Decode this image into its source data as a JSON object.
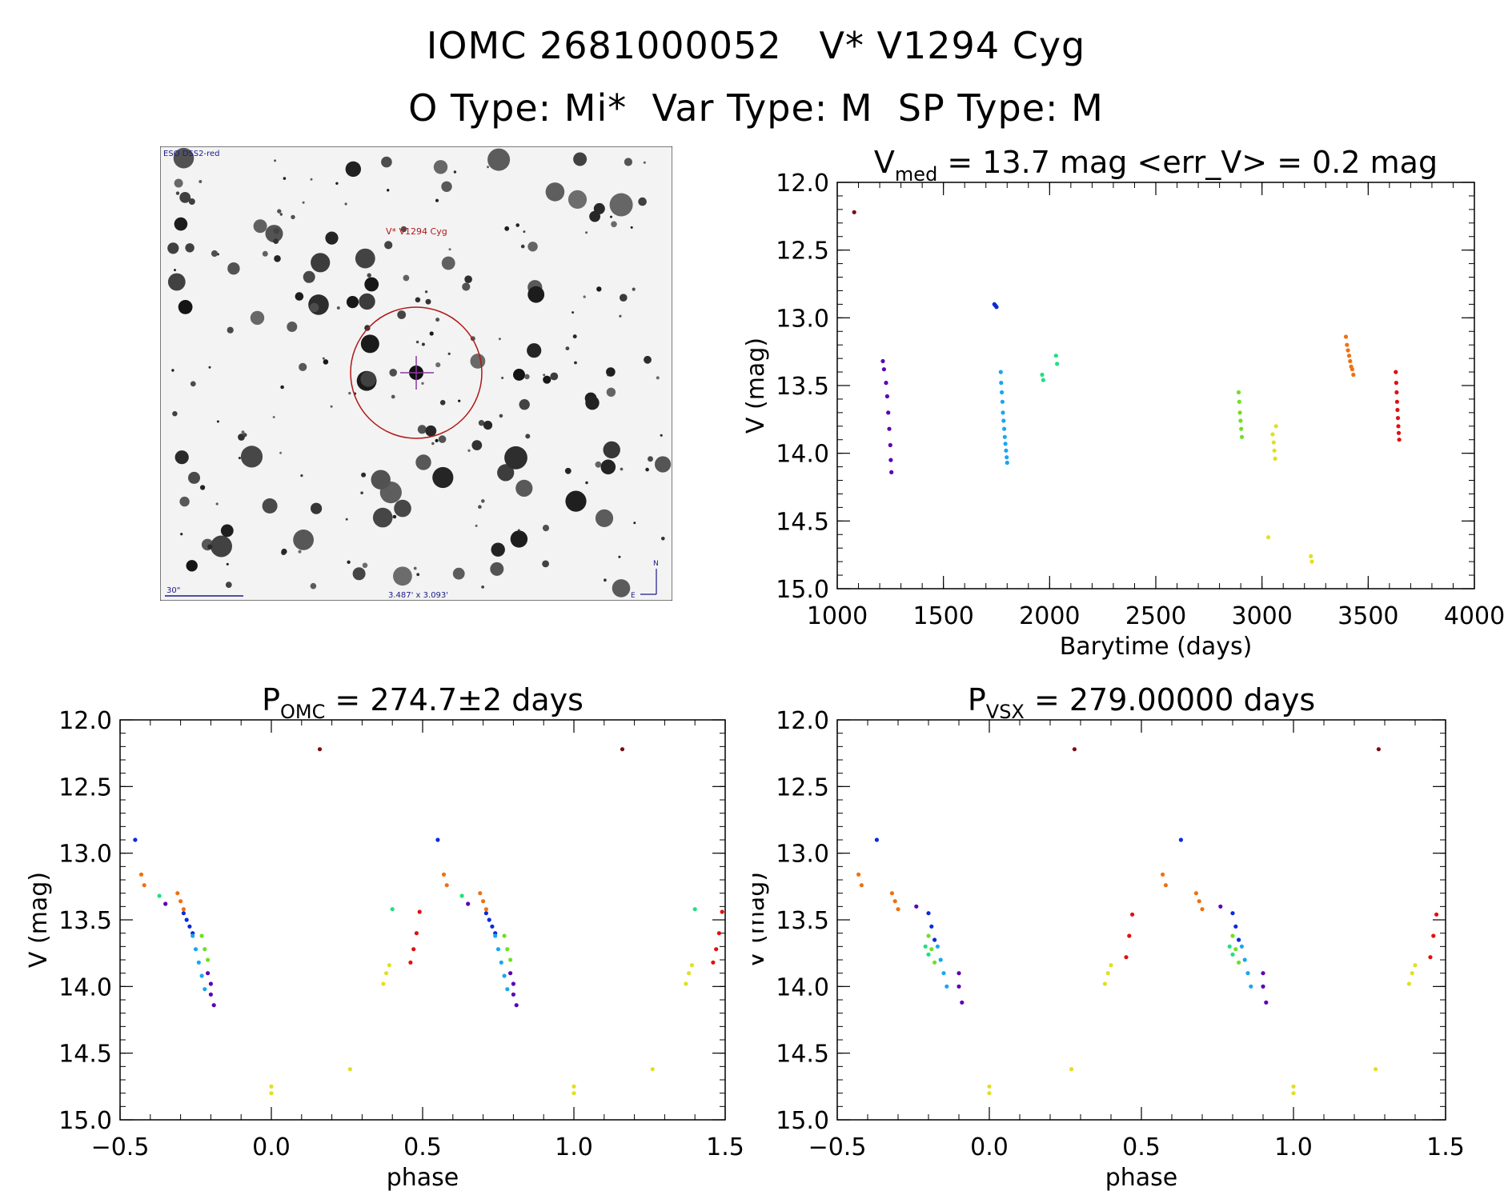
{
  "header": {
    "line1": "IOMC 2681000052   V* V1294 Cyg",
    "line2": "O Type: Mi*  Var Type: M  SP Type: M"
  },
  "finder": {
    "survey_label": "ESO DSS2-red",
    "target_label": "V* V1294 Cyg",
    "scale_label": "30\"",
    "size_label": "3.487' x 3.093'",
    "north_label": "N",
    "east_label": "E"
  },
  "colors": {
    "c1": "#7a0c14",
    "c2": "#5a00b4",
    "c3": "#0a2ad8",
    "c4": "#1aa6f0",
    "c5": "#20e080",
    "c6": "#70e020",
    "c7": "#e0e020",
    "c8": "#f07010",
    "c9": "#e01010"
  },
  "chart_data": [
    {
      "type": "scatter",
      "id": "lightcurve",
      "title_main": "V",
      "title_sub": "med",
      "title_rest": " = 13.7 mag <err_V> = 0.2 mag",
      "xlabel": "Barytime (days)",
      "ylabel": "V (mag)",
      "xlim": [
        1000,
        4000
      ],
      "ylim": [
        15.0,
        12.0
      ],
      "xticks": [
        "1000",
        "1500",
        "2000",
        "2500",
        "3000",
        "3500",
        "4000"
      ],
      "yticks": [
        "12.0",
        "12.5",
        "13.0",
        "13.5",
        "14.0",
        "14.5",
        "15.0"
      ],
      "series": [
        {
          "color": "c1",
          "x": [
            1080
          ],
          "y": [
            12.22
          ]
        },
        {
          "color": "c2",
          "x": [
            1215,
            1220,
            1230,
            1235,
            1240,
            1245,
            1250,
            1252,
            1255
          ],
          "y": [
            13.32,
            13.38,
            13.48,
            13.58,
            13.7,
            13.82,
            13.94,
            14.05,
            14.14
          ]
        },
        {
          "color": "c3",
          "x": [
            1740,
            1745,
            1750
          ],
          "y": [
            12.9,
            12.91,
            12.92
          ]
        },
        {
          "color": "c4",
          "x": [
            1770,
            1772,
            1775,
            1778,
            1780,
            1783,
            1786,
            1789,
            1792,
            1795,
            1798,
            1800
          ],
          "y": [
            13.4,
            13.48,
            13.55,
            13.62,
            13.7,
            13.76,
            13.82,
            13.88,
            13.93,
            13.98,
            14.03,
            14.07
          ]
        },
        {
          "color": "c5",
          "x": [
            1965,
            1970,
            2030,
            2035
          ],
          "y": [
            13.42,
            13.46,
            13.28,
            13.34
          ]
        },
        {
          "color": "c6",
          "x": [
            2890,
            2893,
            2896,
            2899,
            2902,
            2905
          ],
          "y": [
            13.55,
            13.62,
            13.7,
            13.76,
            13.82,
            13.88
          ]
        },
        {
          "color": "c7",
          "x": [
            3030,
            3050,
            3055,
            3058,
            3062,
            3066,
            3230,
            3235
          ],
          "y": [
            14.62,
            13.86,
            13.92,
            13.98,
            14.04,
            13.8,
            14.76,
            14.8
          ]
        },
        {
          "color": "c8",
          "x": [
            3395,
            3400,
            3405,
            3410,
            3415,
            3420,
            3425,
            3430
          ],
          "y": [
            13.14,
            13.2,
            13.24,
            13.28,
            13.32,
            13.36,
            13.38,
            13.42
          ]
        },
        {
          "color": "c9",
          "x": [
            3630,
            3632,
            3634,
            3636,
            3638,
            3640,
            3642,
            3644,
            3646
          ],
          "y": [
            13.4,
            13.48,
            13.55,
            13.62,
            13.68,
            13.74,
            13.8,
            13.85,
            13.9
          ]
        }
      ]
    },
    {
      "type": "scatter",
      "id": "phase-omc",
      "title_main": "P",
      "title_sub": "OMC",
      "title_rest": " = 274.7±2 days",
      "xlabel": "phase",
      "ylabel": "V (mag)",
      "xlim": [
        -0.5,
        1.5
      ],
      "ylim": [
        15.0,
        12.0
      ],
      "xticks": [
        "−0.5",
        "0.0",
        "0.5",
        "1.0",
        "1.5"
      ],
      "yticks": [
        "12.0",
        "12.5",
        "13.0",
        "13.5",
        "14.0",
        "14.5",
        "15.0"
      ],
      "series": [
        {
          "color": "c1",
          "x": [
            0.16,
            1.16
          ],
          "y": [
            12.22,
            12.22
          ]
        },
        {
          "color": "c3",
          "x": [
            -0.45,
            0.55,
            -0.29,
            -0.28,
            -0.27,
            -0.26,
            0.71,
            0.72,
            0.73,
            0.74
          ],
          "y": [
            12.9,
            12.9,
            13.45,
            13.5,
            13.55,
            13.6,
            13.45,
            13.5,
            13.55,
            13.6
          ]
        },
        {
          "color": "c8",
          "x": [
            -0.43,
            -0.42,
            -0.31,
            -0.3,
            -0.29,
            0.57,
            0.58,
            0.69,
            0.7,
            0.71
          ],
          "y": [
            13.16,
            13.24,
            13.3,
            13.36,
            13.42,
            13.16,
            13.24,
            13.3,
            13.36,
            13.42
          ]
        },
        {
          "color": "c5",
          "x": [
            -0.37,
            0.4,
            0.63,
            1.4
          ],
          "y": [
            13.32,
            13.42,
            13.32,
            13.42
          ]
        },
        {
          "color": "c2",
          "x": [
            -0.35,
            -0.21,
            -0.2,
            -0.2,
            -0.19,
            0.65,
            0.79,
            0.8,
            0.8,
            0.81
          ],
          "y": [
            13.38,
            13.9,
            13.98,
            14.06,
            14.14,
            13.38,
            13.9,
            13.98,
            14.06,
            14.14
          ]
        },
        {
          "color": "c4",
          "x": [
            -0.26,
            -0.25,
            -0.24,
            -0.23,
            -0.22,
            0.74,
            0.75,
            0.76,
            0.77,
            0.78
          ],
          "y": [
            13.62,
            13.72,
            13.82,
            13.92,
            14.02,
            13.62,
            13.72,
            13.82,
            13.92,
            14.02
          ]
        },
        {
          "color": "c6",
          "x": [
            -0.23,
            -0.22,
            -0.21,
            0.77,
            0.78,
            0.79
          ],
          "y": [
            13.62,
            13.72,
            13.8,
            13.62,
            13.72,
            13.8
          ]
        },
        {
          "color": "c7",
          "x": [
            0.0,
            0.0,
            0.26,
            0.37,
            0.38,
            0.39,
            1.0,
            1.0,
            1.26,
            1.37,
            1.38,
            1.39
          ],
          "y": [
            14.75,
            14.8,
            14.62,
            13.98,
            13.9,
            13.84,
            14.75,
            14.8,
            14.62,
            13.98,
            13.9,
            13.84
          ]
        },
        {
          "color": "c9",
          "x": [
            0.46,
            0.47,
            0.48,
            0.49,
            1.46,
            1.47,
            1.48,
            1.49
          ],
          "y": [
            13.82,
            13.72,
            13.6,
            13.44,
            13.82,
            13.72,
            13.6,
            13.44
          ]
        }
      ]
    },
    {
      "type": "scatter",
      "id": "phase-vsx",
      "title_main": "P",
      "title_sub": "VSX",
      "title_rest": " = 279.00000 days",
      "xlabel": "phase",
      "ylabel": "V (mag)",
      "xlim": [
        -0.5,
        1.5
      ],
      "ylim": [
        15.0,
        12.0
      ],
      "xticks": [
        "−0.5",
        "0.0",
        "0.5",
        "1.0",
        "1.5"
      ],
      "yticks": [
        "12.0",
        "12.5",
        "13.0",
        "13.5",
        "14.0",
        "14.5",
        "15.0"
      ],
      "series": [
        {
          "color": "c1",
          "x": [
            0.28,
            1.28
          ],
          "y": [
            12.22,
            12.22
          ]
        },
        {
          "color": "c3",
          "x": [
            -0.37,
            0.63,
            -0.2,
            -0.19,
            -0.18,
            0.8,
            0.81,
            0.82
          ],
          "y": [
            12.9,
            12.9,
            13.45,
            13.55,
            13.65,
            13.45,
            13.55,
            13.65
          ]
        },
        {
          "color": "c8",
          "x": [
            -0.43,
            -0.42,
            -0.32,
            -0.31,
            -0.3,
            0.57,
            0.58,
            0.68,
            0.69,
            0.7
          ],
          "y": [
            13.16,
            13.24,
            13.3,
            13.36,
            13.42,
            13.16,
            13.24,
            13.3,
            13.36,
            13.42
          ]
        },
        {
          "color": "c5",
          "x": [
            -0.21,
            -0.2,
            0.79,
            0.8
          ],
          "y": [
            13.7,
            13.76,
            13.7,
            13.76
          ]
        },
        {
          "color": "c6",
          "x": [
            -0.2,
            -0.19,
            -0.18,
            0.8,
            0.81,
            0.82
          ],
          "y": [
            13.62,
            13.72,
            13.82,
            13.62,
            13.72,
            13.82
          ]
        },
        {
          "color": "c4",
          "x": [
            -0.17,
            -0.16,
            -0.15,
            -0.14,
            0.83,
            0.84,
            0.85,
            0.86
          ],
          "y": [
            13.7,
            13.8,
            13.9,
            14.0,
            13.7,
            13.8,
            13.9,
            14.0
          ]
        },
        {
          "color": "c2",
          "x": [
            -0.24,
            -0.1,
            -0.1,
            -0.09,
            0.76,
            0.9,
            0.9,
            0.91
          ],
          "y": [
            13.4,
            13.9,
            14.0,
            14.12,
            13.4,
            13.9,
            14.0,
            14.12
          ]
        },
        {
          "color": "c7",
          "x": [
            0.0,
            0.0,
            0.27,
            0.38,
            0.39,
            0.4,
            1.0,
            1.0,
            1.27,
            1.38,
            1.39,
            1.4
          ],
          "y": [
            14.75,
            14.8,
            14.62,
            13.98,
            13.9,
            13.84,
            14.75,
            14.8,
            14.62,
            13.98,
            13.9,
            13.84
          ]
        },
        {
          "color": "c9",
          "x": [
            0.45,
            0.46,
            0.47,
            1.45,
            1.46,
            1.47
          ],
          "y": [
            13.78,
            13.62,
            13.46,
            13.78,
            13.62,
            13.46
          ]
        }
      ]
    }
  ]
}
